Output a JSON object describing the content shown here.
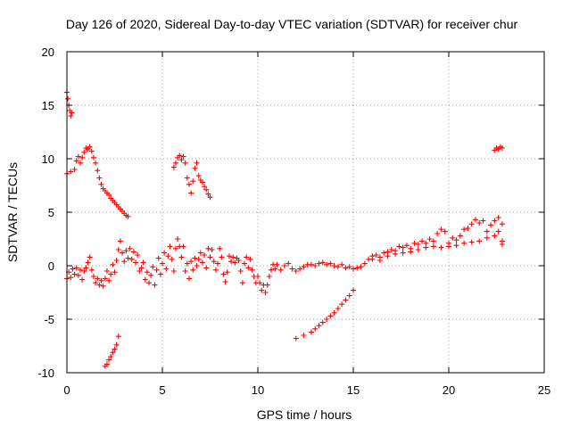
{
  "chart_data": {
    "type": "scatter",
    "title": "Day 126 of 2020, Sidereal Day-to-day VTEC variation (SDTVAR) for receiver chur",
    "xlabel": "GPS time / hours",
    "ylabel": "SDTVAR / TECUs",
    "xlim": [
      0,
      25
    ],
    "ylim": [
      -10,
      20
    ],
    "xticks": [
      0,
      5,
      10,
      15,
      20,
      25
    ],
    "yticks": [
      -10,
      -5,
      0,
      5,
      10,
      15,
      20
    ],
    "grid": true,
    "marker": "+",
    "color": "#ff0000",
    "series": [
      {
        "name": "SDTVAR",
        "points": [
          [
            0.0,
            -1.2
          ],
          [
            0.1,
            -0.6
          ],
          [
            0.2,
            -1.1
          ],
          [
            0.3,
            -0.3
          ],
          [
            0.4,
            -0.8
          ],
          [
            0.5,
            -0.2
          ],
          [
            0.6,
            -0.9
          ],
          [
            0.7,
            -0.4
          ],
          [
            0.8,
            -1.3
          ],
          [
            0.9,
            -0.5
          ],
          [
            1.0,
            -0.2
          ],
          [
            1.1,
            0.3
          ],
          [
            1.2,
            0.8
          ],
          [
            1.3,
            -0.4
          ],
          [
            1.4,
            -1.0
          ],
          [
            1.5,
            -1.6
          ],
          [
            1.6,
            -1.2
          ],
          [
            1.7,
            -1.8
          ],
          [
            1.8,
            -1.4
          ],
          [
            1.9,
            -1.9
          ],
          [
            2.0,
            -1.2
          ],
          [
            2.1,
            -0.5
          ],
          [
            2.2,
            -1.4
          ],
          [
            2.3,
            -0.8
          ],
          [
            2.4,
            0.1
          ],
          [
            2.5,
            -0.6
          ],
          [
            2.6,
            0.5
          ],
          [
            2.7,
            1.5
          ],
          [
            2.8,
            2.3
          ],
          [
            2.9,
            1.2
          ],
          [
            3.0,
            0.4
          ],
          [
            3.1,
            1.4
          ],
          [
            3.2,
            0.7
          ],
          [
            3.3,
            1.6
          ],
          [
            3.4,
            0.6
          ],
          [
            3.5,
            1.3
          ],
          [
            3.6,
            0.3
          ],
          [
            3.7,
            1.0
          ],
          [
            3.8,
            -0.5
          ],
          [
            3.9,
            -0.2
          ],
          [
            4.0,
            0.3
          ],
          [
            4.1,
            -1.3
          ],
          [
            4.2,
            -0.6
          ],
          [
            4.3,
            -1.6
          ],
          [
            4.4,
            -0.9
          ],
          [
            4.5,
            -0.1
          ],
          [
            4.6,
            -1.8
          ],
          [
            4.7,
            -0.4
          ],
          [
            4.8,
            0.7
          ],
          [
            4.9,
            -0.8
          ],
          [
            5.0,
            0.2
          ],
          [
            5.1,
            1.2
          ],
          [
            5.2,
            -0.3
          ],
          [
            5.3,
            0.9
          ],
          [
            5.4,
            1.8
          ],
          [
            5.5,
            0.6
          ],
          [
            5.6,
            -0.5
          ],
          [
            5.7,
            1.6
          ],
          [
            5.8,
            2.5
          ],
          [
            5.9,
            1.8
          ],
          [
            6.0,
            0.8
          ],
          [
            6.1,
            1.8
          ],
          [
            6.2,
            -0.5
          ],
          [
            6.3,
            0.2
          ],
          [
            6.4,
            -1.2
          ],
          [
            6.5,
            0.4
          ],
          [
            6.6,
            -0.4
          ],
          [
            6.7,
            0.7
          ],
          [
            6.8,
            0.0
          ],
          [
            6.9,
            0.6
          ],
          [
            7.0,
            1.2
          ],
          [
            7.1,
            0.3
          ],
          [
            7.2,
            1.0
          ],
          [
            7.3,
            -0.2
          ],
          [
            7.4,
            1.6
          ],
          [
            7.5,
            0.8
          ],
          [
            7.6,
            1.5
          ],
          [
            7.7,
            0.4
          ],
          [
            7.8,
            -0.4
          ],
          [
            7.9,
            0.2
          ],
          [
            8.0,
            1.6
          ],
          [
            8.1,
            0.8
          ],
          [
            8.2,
            -0.8
          ],
          [
            8.3,
            -1.5
          ],
          [
            8.4,
            -0.6
          ],
          [
            8.5,
            0.9
          ],
          [
            8.6,
            0.4
          ],
          [
            8.7,
            0.8
          ],
          [
            8.8,
            0.3
          ],
          [
            8.9,
            0.7
          ],
          [
            9.0,
            0.5
          ],
          [
            9.1,
            -0.5
          ],
          [
            9.2,
            -1.6
          ],
          [
            9.3,
            0.2
          ],
          [
            9.4,
            0.8
          ],
          [
            9.5,
            -0.2
          ],
          [
            9.6,
            0.6
          ],
          [
            9.7,
            -0.4
          ],
          [
            9.8,
            -1.0
          ],
          [
            9.9,
            -1.6
          ],
          [
            10.0,
            -1.0
          ],
          [
            10.1,
            -1.6
          ],
          [
            10.2,
            -2.3
          ],
          [
            10.3,
            -1.8
          ],
          [
            10.4,
            -2.5
          ],
          [
            10.5,
            -1.8
          ],
          [
            10.6,
            -1.0
          ],
          [
            10.7,
            -0.4
          ],
          [
            10.8,
            0.1
          ],
          [
            10.9,
            -0.3
          ],
          [
            11.0,
            0.1
          ],
          [
            11.2,
            -0.4
          ],
          [
            11.4,
            0.0
          ],
          [
            11.6,
            0.2
          ],
          [
            11.8,
            -0.3
          ],
          [
            12.0,
            -0.5
          ],
          [
            12.2,
            -0.3
          ],
          [
            12.4,
            -0.1
          ],
          [
            12.6,
            0.1
          ],
          [
            12.8,
            0.1
          ],
          [
            13.0,
            0.0
          ],
          [
            13.2,
            0.2
          ],
          [
            13.4,
            0.3
          ],
          [
            13.6,
            0.1
          ],
          [
            13.8,
            0.2
          ],
          [
            14.0,
            0.0
          ],
          [
            14.2,
            -0.1
          ],
          [
            14.4,
            0.1
          ],
          [
            14.6,
            -0.2
          ],
          [
            14.8,
            -0.1
          ],
          [
            15.0,
            -0.3
          ],
          [
            15.2,
            -0.2
          ],
          [
            15.4,
            -0.1
          ],
          [
            15.6,
            0.2
          ],
          [
            15.8,
            0.6
          ],
          [
            16.0,
            0.9
          ],
          [
            16.2,
            1.0
          ],
          [
            16.4,
            0.8
          ],
          [
            16.6,
            1.2
          ],
          [
            16.8,
            1.3
          ],
          [
            17.0,
            1.5
          ],
          [
            17.2,
            1.4
          ],
          [
            17.4,
            1.8
          ],
          [
            17.6,
            1.7
          ],
          [
            17.8,
            1.9
          ],
          [
            18.0,
            1.6
          ],
          [
            18.2,
            2.1
          ],
          [
            18.4,
            2.0
          ],
          [
            18.6,
            2.3
          ],
          [
            18.8,
            2.1
          ],
          [
            19.0,
            2.5
          ],
          [
            19.2,
            2.3
          ],
          [
            19.4,
            3.0
          ],
          [
            19.6,
            3.4
          ],
          [
            19.8,
            3.2
          ],
          [
            20.0,
            2.1
          ],
          [
            20.2,
            2.6
          ],
          [
            20.4,
            2.4
          ],
          [
            20.6,
            2.8
          ],
          [
            20.8,
            3.4
          ],
          [
            21.0,
            3.5
          ],
          [
            21.2,
            3.9
          ],
          [
            21.4,
            4.3
          ],
          [
            21.6,
            4.0
          ],
          [
            21.8,
            4.2
          ],
          [
            22.0,
            3.2
          ],
          [
            22.2,
            3.8
          ],
          [
            22.4,
            4.2
          ],
          [
            22.6,
            4.5
          ],
          [
            22.8,
            3.9
          ],
          [
            16.0,
            0.6
          ],
          [
            16.4,
            0.5
          ],
          [
            16.8,
            0.9
          ],
          [
            17.2,
            1.1
          ],
          [
            17.6,
            1.2
          ],
          [
            18.0,
            1.3
          ],
          [
            18.4,
            1.5
          ],
          [
            18.8,
            1.7
          ],
          [
            19.2,
            1.8
          ],
          [
            19.6,
            1.7
          ],
          [
            20.0,
            1.8
          ],
          [
            20.4,
            1.9
          ],
          [
            20.8,
            2.1
          ],
          [
            21.2,
            2.2
          ],
          [
            21.6,
            2.3
          ],
          [
            22.0,
            2.6
          ],
          [
            22.4,
            2.8
          ],
          [
            22.6,
            3.2
          ],
          [
            22.8,
            2.3
          ],
          [
            22.8,
            2.0
          ],
          [
            0.0,
            16.2
          ],
          [
            0.05,
            15.6
          ],
          [
            0.1,
            15.0
          ],
          [
            0.15,
            14.5
          ],
          [
            0.2,
            14.0
          ],
          [
            0.25,
            14.3
          ],
          [
            0.0,
            8.6
          ],
          [
            0.2,
            8.8
          ],
          [
            0.4,
            9.0
          ],
          [
            0.5,
            9.8
          ],
          [
            0.6,
            10.2
          ],
          [
            0.7,
            9.6
          ],
          [
            0.8,
            10.1
          ],
          [
            0.9,
            10.6
          ],
          [
            1.0,
            11.0
          ],
          [
            1.1,
            10.9
          ],
          [
            1.2,
            11.1
          ],
          [
            1.3,
            10.7
          ],
          [
            1.4,
            10.1
          ],
          [
            1.5,
            9.6
          ],
          [
            1.6,
            8.9
          ],
          [
            1.7,
            8.2
          ],
          [
            1.8,
            7.6
          ],
          [
            1.9,
            7.2
          ],
          [
            2.0,
            7.0
          ],
          [
            2.1,
            6.8
          ],
          [
            2.2,
            6.6
          ],
          [
            2.3,
            6.3
          ],
          [
            2.4,
            6.1
          ],
          [
            2.5,
            5.9
          ],
          [
            2.6,
            5.7
          ],
          [
            2.7,
            5.5
          ],
          [
            2.8,
            5.3
          ],
          [
            2.9,
            5.1
          ],
          [
            3.0,
            4.9
          ],
          [
            3.1,
            4.7
          ],
          [
            3.2,
            4.6
          ],
          [
            2.0,
            -9.4
          ],
          [
            2.1,
            -9.2
          ],
          [
            2.2,
            -8.8
          ],
          [
            2.3,
            -8.5
          ],
          [
            2.4,
            -8.1
          ],
          [
            2.5,
            -7.8
          ],
          [
            2.6,
            -7.4
          ],
          [
            2.7,
            -6.6
          ],
          [
            5.6,
            9.2
          ],
          [
            5.7,
            9.6
          ],
          [
            5.8,
            10.1
          ],
          [
            5.9,
            10.3
          ],
          [
            6.0,
            9.9
          ],
          [
            6.1,
            10.2
          ],
          [
            6.2,
            9.6
          ],
          [
            6.3,
            8.2
          ],
          [
            6.4,
            7.6
          ],
          [
            6.5,
            6.8
          ],
          [
            6.6,
            7.9
          ],
          [
            6.7,
            9.1
          ],
          [
            6.8,
            9.6
          ],
          [
            6.9,
            8.4
          ],
          [
            7.0,
            8.0
          ],
          [
            7.1,
            7.8
          ],
          [
            7.2,
            7.4
          ],
          [
            7.3,
            7.1
          ],
          [
            7.4,
            6.7
          ],
          [
            7.5,
            6.4
          ],
          [
            12.0,
            -6.8
          ],
          [
            12.4,
            -6.5
          ],
          [
            12.8,
            -6.2
          ],
          [
            13.0,
            -5.9
          ],
          [
            13.2,
            -5.6
          ],
          [
            13.4,
            -5.3
          ],
          [
            13.6,
            -5.0
          ],
          [
            13.8,
            -4.7
          ],
          [
            14.0,
            -4.4
          ],
          [
            14.2,
            -4.0
          ],
          [
            14.4,
            -3.6
          ],
          [
            14.6,
            -3.2
          ],
          [
            14.8,
            -2.8
          ],
          [
            15.0,
            -2.3
          ],
          [
            22.4,
            10.8
          ],
          [
            22.5,
            11.0
          ],
          [
            22.6,
            10.9
          ],
          [
            22.7,
            11.1
          ],
          [
            22.8,
            11.0
          ]
        ]
      }
    ]
  }
}
